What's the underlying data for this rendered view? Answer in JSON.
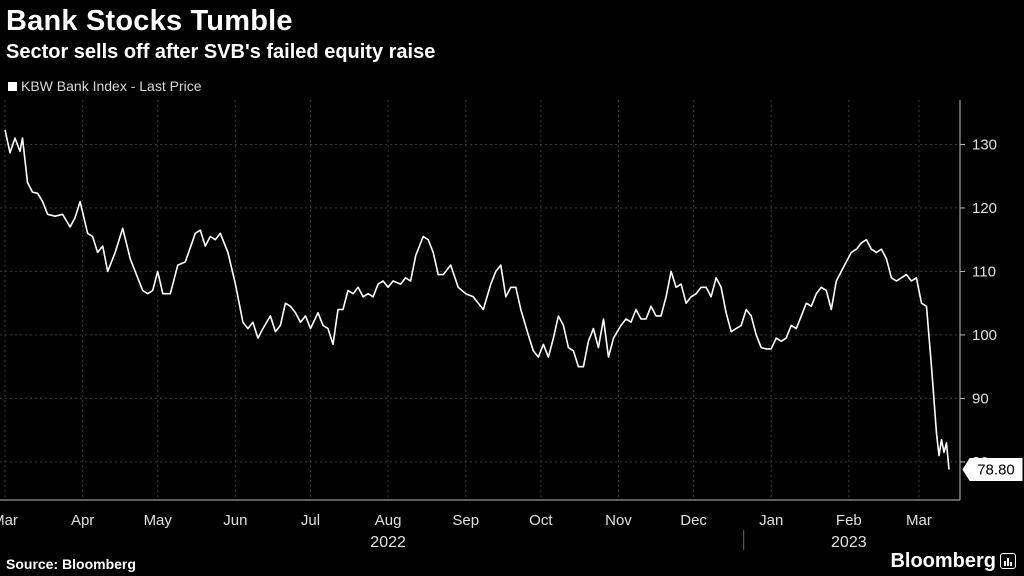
{
  "title": "Bank Stocks Tumble",
  "subtitle": "Sector sells off after SVB's failed equity raise",
  "source": "Source: Bloomberg",
  "brand": "Bloomberg",
  "colors": {
    "background": "#000000",
    "line": "#ffffff",
    "grid": "#3a3a3a",
    "text": "#e0e0e0"
  },
  "chart_data": {
    "type": "line",
    "title": "Bank Stocks Tumble",
    "subtitle": "Sector sells off after SVB's failed equity raise",
    "legend": [
      "KBW Bank Index - Last Price"
    ],
    "legend_position": "top-left",
    "grid": true,
    "y_axis_position": "right",
    "ylim": [
      74,
      137
    ],
    "y_ticks": [
      80,
      90,
      100,
      110,
      120,
      130
    ],
    "x_range": [
      "2022-03-01",
      "2023-03-13"
    ],
    "x_tick_labels": [
      {
        "label": "Mar",
        "date": "2022-03-01"
      },
      {
        "label": "Apr",
        "date": "2022-04-01"
      },
      {
        "label": "May",
        "date": "2022-05-01"
      },
      {
        "label": "Jun",
        "date": "2022-06-01"
      },
      {
        "label": "Jul",
        "date": "2022-07-01"
      },
      {
        "label": "Aug",
        "date": "2022-08-01"
      },
      {
        "label": "Sep",
        "date": "2022-09-01"
      },
      {
        "label": "Oct",
        "date": "2022-10-01"
      },
      {
        "label": "Nov",
        "date": "2022-11-01"
      },
      {
        "label": "Dec",
        "date": "2022-12-01"
      },
      {
        "label": "Jan",
        "date": "2023-01-01"
      },
      {
        "label": "Feb",
        "date": "2023-02-01"
      },
      {
        "label": "Mar",
        "date": "2023-03-01"
      }
    ],
    "year_labels": [
      {
        "label": "2022",
        "date": "2022-08-01"
      },
      {
        "label": "2023",
        "date": "2023-02-01"
      }
    ],
    "last_value_label": "78.80",
    "series": [
      {
        "name": "KBW Bank Index - Last Price",
        "points": [
          [
            "2022-03-01",
            132.3
          ],
          [
            "2022-03-03",
            128.7
          ],
          [
            "2022-03-05",
            131.0
          ],
          [
            "2022-03-07",
            128.9
          ],
          [
            "2022-03-08",
            131.0
          ],
          [
            "2022-03-10",
            124.0
          ],
          [
            "2022-03-12",
            122.5
          ],
          [
            "2022-03-14",
            122.3
          ],
          [
            "2022-03-16",
            121.0
          ],
          [
            "2022-03-18",
            119.0
          ],
          [
            "2022-03-21",
            118.7
          ],
          [
            "2022-03-24",
            119.0
          ],
          [
            "2022-03-27",
            117.0
          ],
          [
            "2022-03-29",
            118.5
          ],
          [
            "2022-03-31",
            121.0
          ],
          [
            "2022-04-03",
            116.0
          ],
          [
            "2022-04-05",
            115.5
          ],
          [
            "2022-04-07",
            113.0
          ],
          [
            "2022-04-09",
            114.0
          ],
          [
            "2022-04-11",
            110.0
          ],
          [
            "2022-04-14",
            113.0
          ],
          [
            "2022-04-17",
            116.8
          ],
          [
            "2022-04-20",
            112.0
          ],
          [
            "2022-04-23",
            109.0
          ],
          [
            "2022-04-25",
            107.0
          ],
          [
            "2022-04-27",
            106.5
          ],
          [
            "2022-04-29",
            107.0
          ],
          [
            "2022-05-01",
            110.0
          ],
          [
            "2022-05-03",
            106.5
          ],
          [
            "2022-05-06",
            106.5
          ],
          [
            "2022-05-09",
            111.0
          ],
          [
            "2022-05-12",
            111.5
          ],
          [
            "2022-05-16",
            116.0
          ],
          [
            "2022-05-18",
            116.5
          ],
          [
            "2022-05-20",
            114.0
          ],
          [
            "2022-05-22",
            115.5
          ],
          [
            "2022-05-24",
            115.0
          ],
          [
            "2022-05-26",
            116.0
          ],
          [
            "2022-05-29",
            113.0
          ],
          [
            "2022-06-01",
            108.0
          ],
          [
            "2022-06-04",
            102.0
          ],
          [
            "2022-06-06",
            101.0
          ],
          [
            "2022-06-08",
            102.0
          ],
          [
            "2022-06-10",
            99.5
          ],
          [
            "2022-06-12",
            101.0
          ],
          [
            "2022-06-15",
            103.0
          ],
          [
            "2022-06-17",
            100.5
          ],
          [
            "2022-06-19",
            101.5
          ],
          [
            "2022-06-21",
            105.0
          ],
          [
            "2022-06-23",
            104.5
          ],
          [
            "2022-06-25",
            103.5
          ],
          [
            "2022-06-27",
            102.0
          ],
          [
            "2022-06-29",
            103.0
          ],
          [
            "2022-07-01",
            101.0
          ],
          [
            "2022-07-04",
            103.5
          ],
          [
            "2022-07-06",
            101.5
          ],
          [
            "2022-07-08",
            101.0
          ],
          [
            "2022-07-10",
            98.5
          ],
          [
            "2022-07-12",
            104.0
          ],
          [
            "2022-07-14",
            104.0
          ],
          [
            "2022-07-16",
            107.0
          ],
          [
            "2022-07-18",
            106.5
          ],
          [
            "2022-07-20",
            107.5
          ],
          [
            "2022-07-22",
            106.0
          ],
          [
            "2022-07-24",
            106.5
          ],
          [
            "2022-07-26",
            106.0
          ],
          [
            "2022-07-28",
            108.0
          ],
          [
            "2022-07-30",
            108.5
          ],
          [
            "2022-08-01",
            107.5
          ],
          [
            "2022-08-03",
            108.5
          ],
          [
            "2022-08-06",
            108.0
          ],
          [
            "2022-08-08",
            109.0
          ],
          [
            "2022-08-10",
            108.5
          ],
          [
            "2022-08-12",
            112.5
          ],
          [
            "2022-08-15",
            115.5
          ],
          [
            "2022-08-17",
            115.0
          ],
          [
            "2022-08-19",
            113.0
          ],
          [
            "2022-08-21",
            109.5
          ],
          [
            "2022-08-23",
            109.5
          ],
          [
            "2022-08-26",
            111.0
          ],
          [
            "2022-08-29",
            107.5
          ],
          [
            "2022-09-01",
            106.5
          ],
          [
            "2022-09-04",
            106.0
          ],
          [
            "2022-09-06",
            105.0
          ],
          [
            "2022-09-08",
            104.0
          ],
          [
            "2022-09-11",
            108.0
          ],
          [
            "2022-09-13",
            110.0
          ],
          [
            "2022-09-15",
            111.0
          ],
          [
            "2022-09-17",
            106.0
          ],
          [
            "2022-09-19",
            107.5
          ],
          [
            "2022-09-21",
            107.5
          ],
          [
            "2022-09-23",
            104.0
          ],
          [
            "2022-09-26",
            100.0
          ],
          [
            "2022-09-28",
            97.5
          ],
          [
            "2022-09-30",
            96.5
          ],
          [
            "2022-10-02",
            98.5
          ],
          [
            "2022-10-04",
            96.5
          ],
          [
            "2022-10-06",
            99.5
          ],
          [
            "2022-10-08",
            103.0
          ],
          [
            "2022-10-10",
            101.5
          ],
          [
            "2022-10-12",
            98.0
          ],
          [
            "2022-10-14",
            97.5
          ],
          [
            "2022-10-16",
            95.0
          ],
          [
            "2022-10-18",
            95.0
          ],
          [
            "2022-10-20",
            99.0
          ],
          [
            "2022-10-22",
            101.0
          ],
          [
            "2022-10-24",
            98.0
          ],
          [
            "2022-10-26",
            102.5
          ],
          [
            "2022-10-28",
            96.5
          ],
          [
            "2022-10-30",
            99.5
          ],
          [
            "2022-11-02",
            101.5
          ],
          [
            "2022-11-04",
            102.5
          ],
          [
            "2022-11-06",
            102.0
          ],
          [
            "2022-11-08",
            104.0
          ],
          [
            "2022-11-10",
            102.5
          ],
          [
            "2022-11-12",
            102.5
          ],
          [
            "2022-11-14",
            104.5
          ],
          [
            "2022-11-16",
            103.0
          ],
          [
            "2022-11-18",
            103.0
          ],
          [
            "2022-11-20",
            106.0
          ],
          [
            "2022-11-22",
            110.0
          ],
          [
            "2022-11-24",
            107.5
          ],
          [
            "2022-11-26",
            108.0
          ],
          [
            "2022-11-28",
            105.0
          ],
          [
            "2022-11-30",
            106.0
          ],
          [
            "2022-12-02",
            106.5
          ],
          [
            "2022-12-04",
            107.5
          ],
          [
            "2022-12-06",
            107.5
          ],
          [
            "2022-12-08",
            106.0
          ],
          [
            "2022-12-10",
            109.0
          ],
          [
            "2022-12-12",
            107.5
          ],
          [
            "2022-12-14",
            103.5
          ],
          [
            "2022-12-16",
            100.5
          ],
          [
            "2022-12-18",
            101.0
          ],
          [
            "2022-12-20",
            101.5
          ],
          [
            "2022-12-22",
            104.0
          ],
          [
            "2022-12-24",
            103.0
          ],
          [
            "2022-12-26",
            100.0
          ],
          [
            "2022-12-28",
            98.0
          ],
          [
            "2022-12-30",
            97.8
          ],
          [
            "2023-01-01",
            97.8
          ],
          [
            "2023-01-03",
            99.5
          ],
          [
            "2023-01-05",
            99.0
          ],
          [
            "2023-01-07",
            99.5
          ],
          [
            "2023-01-09",
            101.5
          ],
          [
            "2023-01-11",
            101.0
          ],
          [
            "2023-01-13",
            103.0
          ],
          [
            "2023-01-15",
            105.0
          ],
          [
            "2023-01-17",
            104.5
          ],
          [
            "2023-01-19",
            106.5
          ],
          [
            "2023-01-21",
            107.5
          ],
          [
            "2023-01-23",
            107.0
          ],
          [
            "2023-01-25",
            104.0
          ],
          [
            "2023-01-27",
            108.5
          ],
          [
            "2023-01-29",
            110.0
          ],
          [
            "2023-01-31",
            111.5
          ],
          [
            "2023-02-02",
            113.0
          ],
          [
            "2023-02-04",
            113.5
          ],
          [
            "2023-02-06",
            114.5
          ],
          [
            "2023-02-08",
            115.0
          ],
          [
            "2023-02-10",
            113.5
          ],
          [
            "2023-02-12",
            113.0
          ],
          [
            "2023-02-14",
            113.5
          ],
          [
            "2023-02-16",
            112.0
          ],
          [
            "2023-02-18",
            109.0
          ],
          [
            "2023-02-20",
            108.5
          ],
          [
            "2023-02-22",
            109.0
          ],
          [
            "2023-02-24",
            109.5
          ],
          [
            "2023-02-26",
            108.5
          ],
          [
            "2023-02-28",
            109.0
          ],
          [
            "2023-03-02",
            105.0
          ],
          [
            "2023-03-04",
            104.5
          ],
          [
            "2023-03-06",
            95.0
          ],
          [
            "2023-03-08",
            84.5
          ],
          [
            "2023-03-09",
            81.0
          ],
          [
            "2023-03-10",
            83.5
          ],
          [
            "2023-03-11",
            81.5
          ],
          [
            "2023-03-12",
            83.0
          ],
          [
            "2023-03-13",
            78.8
          ]
        ]
      }
    ]
  }
}
